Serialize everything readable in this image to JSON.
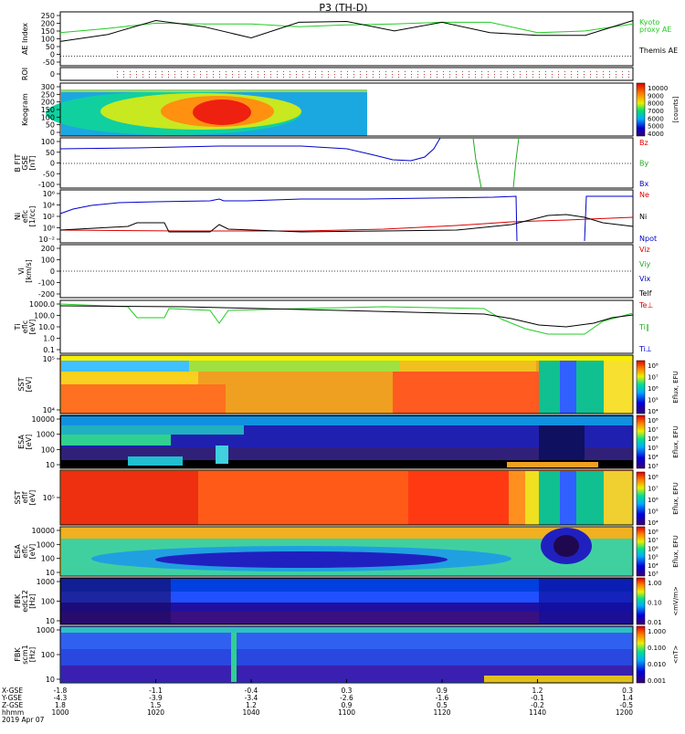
{
  "title": "P3 (TH-D)",
  "footer": {
    "date": "2019 Apr 07",
    "row_labels": [
      "X-GSE",
      "Y-GSE",
      "Z-GSE",
      "hhmm"
    ],
    "times": [
      "1000",
      "1020",
      "1040",
      "1100",
      "1120",
      "1140",
      "1200"
    ],
    "x": [
      "-1.8",
      "-1.1",
      "-0.4",
      "0.3",
      "0.9",
      "1.2",
      "0.3"
    ],
    "y": [
      "-4.3",
      "-3.9",
      "-3.4",
      "-2.6",
      "-1.6",
      "-0.1",
      "1.4"
    ],
    "z": [
      "1.8",
      "1.5",
      "1.2",
      "0.9",
      "0.5",
      "-0.2",
      "-0.5"
    ]
  },
  "panels": [
    {
      "id": "ae",
      "ylabel": [
        "AE Index"
      ],
      "yticks": [
        "250",
        "200",
        "150",
        "100",
        "50",
        "0",
        "-50"
      ],
      "legend": [
        {
          "text": "Kyoto",
          "color": "#22cc22"
        },
        {
          "text": "proxy AE",
          "color": "#22cc22"
        },
        {
          "text": "Themis AE",
          "color": "#000000"
        }
      ]
    },
    {
      "id": "roi",
      "ylabel": [
        "ROI"
      ],
      "yticks": [
        "0"
      ],
      "legend": []
    },
    {
      "id": "keogram",
      "ylabel": [
        "Keogram"
      ],
      "yticks": [
        "300",
        "250",
        "200",
        "150",
        "100",
        "50",
        "0"
      ],
      "colorbar": {
        "ticks": [
          "10000",
          "9000",
          "8000",
          "7000",
          "6000",
          "5000",
          "4000"
        ],
        "label": "[counts]"
      }
    },
    {
      "id": "bfield",
      "ylabel": [
        "B FIT",
        "GSE",
        "[nT]"
      ],
      "yticks": [
        "100",
        "50",
        "0",
        "-50",
        "-100"
      ],
      "legend": [
        {
          "text": "Bz",
          "color": "#dd0000"
        },
        {
          "text": "By",
          "color": "#22aa22"
        },
        {
          "text": "Bx",
          "color": "#0000cc"
        }
      ]
    },
    {
      "id": "density",
      "ylabel": [
        "Ni",
        "eflc",
        "[1/cc]"
      ],
      "yticks": [
        "10⁶",
        "10⁴",
        "10²",
        "10⁰",
        "10⁻²"
      ],
      "legend": [
        {
          "text": "Ne",
          "color": "#dd0000"
        },
        {
          "text": "Ni",
          "color": "#000000"
        },
        {
          "text": "Npot",
          "color": "#0000cc"
        }
      ]
    },
    {
      "id": "velocity",
      "ylabel": [
        "Vi",
        "[km/s]"
      ],
      "yticks": [
        "200",
        "100",
        "0",
        "-100",
        "-200"
      ],
      "legend": [
        {
          "text": "Viz",
          "color": "#dd0000"
        },
        {
          "text": "Viy",
          "color": "#22aa22"
        },
        {
          "text": "Vix",
          "color": "#0000cc"
        },
        {
          "text": "Telf",
          "color": "#000000"
        }
      ]
    },
    {
      "id": "temp",
      "ylabel": [
        "Ti",
        "eflc",
        "[eV]"
      ],
      "yticks": [
        "1000.0",
        "100.0",
        "10.0",
        "1.0",
        "0.1"
      ],
      "legend": [
        {
          "text": "Te⊥",
          "color": "#dd0000"
        },
        {
          "text": "Ti∥",
          "color": "#22aa22"
        },
        {
          "text": "Ti⊥",
          "color": "#0000cc"
        }
      ]
    },
    {
      "id": "sst_e",
      "ylabel": [
        "SST",
        "[eV]"
      ],
      "yticks": [
        "10⁵",
        "10⁴"
      ],
      "colorbar": {
        "ticks": [
          "10⁸",
          "10⁷",
          "10⁶",
          "10⁵",
          "10⁴"
        ],
        "label": "Eflux, EFU"
      }
    },
    {
      "id": "esa_e",
      "ylabel": [
        "ESA",
        "[eV]"
      ],
      "yticks": [
        "10000",
        "1000",
        "100",
        "10"
      ],
      "colorbar": {
        "ticks": [
          "10⁸",
          "10⁷",
          "10⁶",
          "10⁵",
          "10⁴",
          "10³"
        ],
        "label": "Eflux, EFU"
      }
    },
    {
      "id": "sst_i",
      "ylabel": [
        "SST",
        "eflf",
        "[eV]"
      ],
      "yticks": [
        "10⁵"
      ],
      "colorbar": {
        "ticks": [
          "10⁸",
          "10⁷",
          "10⁶",
          "10⁵",
          "10⁴"
        ],
        "label": "Eflux, EFU"
      }
    },
    {
      "id": "esa_i",
      "ylabel": [
        "ESA",
        "eflc",
        "[eV]"
      ],
      "yticks": [
        "10000",
        "1000",
        "100",
        "10"
      ],
      "colorbar": {
        "ticks": [
          "10⁸",
          "10⁷",
          "10⁶",
          "10⁵",
          "10⁴",
          "10³"
        ],
        "label": "Eflux, EFU"
      }
    },
    {
      "id": "fbk_e",
      "ylabel": [
        "FBK",
        "edc12",
        "[Hz]"
      ],
      "yticks": [
        "1000",
        "100",
        "10"
      ],
      "colorbar": {
        "ticks": [
          "1.00",
          "0.10",
          "0.01"
        ],
        "label": "<mV/m>"
      }
    },
    {
      "id": "fbk_b",
      "ylabel": [
        "FBK",
        "scm1",
        "[Hz]"
      ],
      "yticks": [
        "1000",
        "100",
        "10"
      ],
      "colorbar": {
        "ticks": [
          "1.000",
          "0.100",
          "0.010",
          "0.001"
        ],
        "label": "<nT>"
      }
    }
  ],
  "chart_data": {
    "type": "line",
    "title": "P3 (TH-D)",
    "x": [
      "1000",
      "1010",
      "1020",
      "1030",
      "1040",
      "1050",
      "1100",
      "1110",
      "1120",
      "1130",
      "1140",
      "1150",
      "1200"
    ],
    "series": [
      {
        "name": "Themis AE",
        "values": [
          90,
          130,
          210,
          175,
          110,
          200,
          205,
          150,
          200,
          140,
          125,
          125,
          210
        ]
      },
      {
        "name": "Kyoto proxy AE",
        "values": [
          140,
          165,
          195,
          190,
          190,
          175,
          185,
          190,
          200,
          200,
          140,
          150,
          190
        ]
      }
    ],
    "ylabel": "AE Index",
    "ylim": [
      -50,
      260
    ]
  }
}
